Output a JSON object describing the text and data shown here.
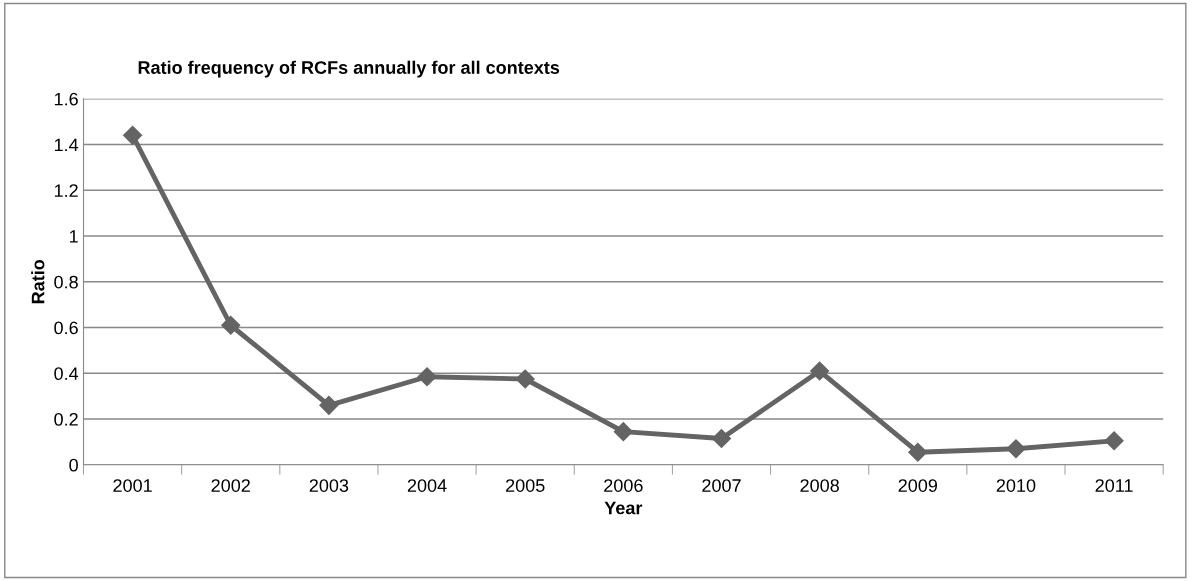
{
  "chart_data": {
    "type": "line",
    "title": "Ratio frequency of RCFs annually for all contexts",
    "xlabel": "Year",
    "ylabel": "Ratio",
    "categories": [
      "2001",
      "2002",
      "2003",
      "2004",
      "2005",
      "2006",
      "2007",
      "2008",
      "2009",
      "2010",
      "2011"
    ],
    "series": [
      {
        "color": "#646464",
        "values": [
          1.44,
          0.61,
          0.26,
          0.385,
          0.375,
          0.145,
          0.115,
          0.41,
          0.055,
          0.07,
          0.105
        ]
      }
    ],
    "ylim": [
      0,
      1.6
    ],
    "yticks": [
      0,
      0.2,
      0.4,
      0.6,
      0.8,
      {
        "value": 1,
        "label": "1"
      },
      1.2,
      1.4,
      1.6
    ],
    "grid": "y",
    "marker": "diamond",
    "line_style": "solid",
    "legend": false
  }
}
